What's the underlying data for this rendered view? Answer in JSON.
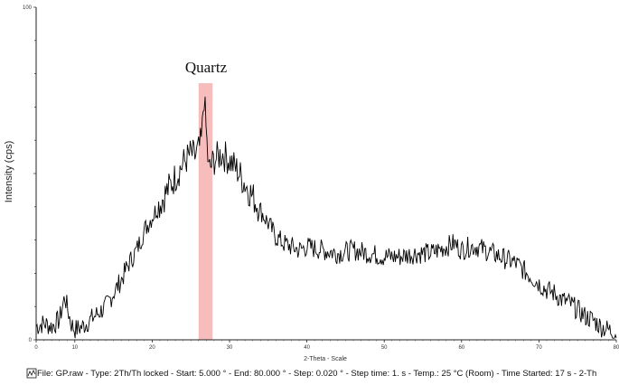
{
  "chart_data": {
    "type": "line",
    "title": "",
    "xlabel": "2-Theta - Scale",
    "ylabel": "Intensity (cps)",
    "xlim": [
      5,
      80
    ],
    "ylim": [
      0,
      100
    ],
    "y_tick_labels": [
      "0",
      "100"
    ],
    "x_tick_labels": [
      "0",
      "10",
      "20",
      "30",
      "40",
      "50",
      "60",
      "70",
      "80"
    ],
    "grid": false,
    "annotation": {
      "text": "Quartz",
      "highlight_x": [
        26.0,
        27.8
      ],
      "highlight_color": "#f4a7a7"
    },
    "series": [
      {
        "color": "#000000",
        "x": [
          5.0,
          6.0,
          7.0,
          8.0,
          8.7,
          9.5,
          10.0,
          11.0,
          12.0,
          13.0,
          14.0,
          15.0,
          16.0,
          17.0,
          18.0,
          19.0,
          20.0,
          21.0,
          22.0,
          23.0,
          24.0,
          25.0,
          25.5,
          26.0,
          26.4,
          26.7,
          27.0,
          27.3,
          27.6,
          28.0,
          28.5,
          29.0,
          30.0,
          31.0,
          32.0,
          33.0,
          34.0,
          35.0,
          36.0,
          37.0,
          38.0,
          39.0,
          40.0,
          42.0,
          44.0,
          46.0,
          48.0,
          50.0,
          52.0,
          54.0,
          56.0,
          58.0,
          59.0,
          60.0,
          61.0,
          62.0,
          63.0,
          64.0,
          65.0,
          66.0,
          67.0,
          68.0,
          69.0,
          70.0,
          71.0,
          72.0,
          73.0,
          74.0,
          75.0,
          76.0,
          77.0,
          78.0,
          79.0,
          80.0
        ],
        "y": [
          4,
          5,
          4,
          6,
          13,
          5,
          3,
          4,
          6,
          8,
          10,
          14,
          18,
          23,
          27,
          33,
          37,
          41,
          45,
          49,
          53,
          56,
          55,
          57,
          60,
          74,
          62,
          51,
          52,
          54,
          55,
          56,
          54,
          51,
          47,
          43,
          39,
          35,
          31,
          29,
          28,
          27,
          28,
          27,
          26,
          27,
          26,
          25,
          25,
          26,
          26,
          28,
          29,
          27,
          28,
          28,
          27,
          26,
          25,
          24,
          23,
          21,
          19,
          17,
          15,
          14,
          12,
          11,
          9,
          7,
          6,
          4,
          3,
          2
        ]
      }
    ]
  },
  "footer": {
    "text": "File: GP.raw - Type: 2Th/Th locked - Start: 5.000 ° - End: 80.000 ° - Step: 0.020 ° - Step time: 1. s - Temp.: 25 °C (Room) - Time Started: 17 s - 2-Th"
  }
}
